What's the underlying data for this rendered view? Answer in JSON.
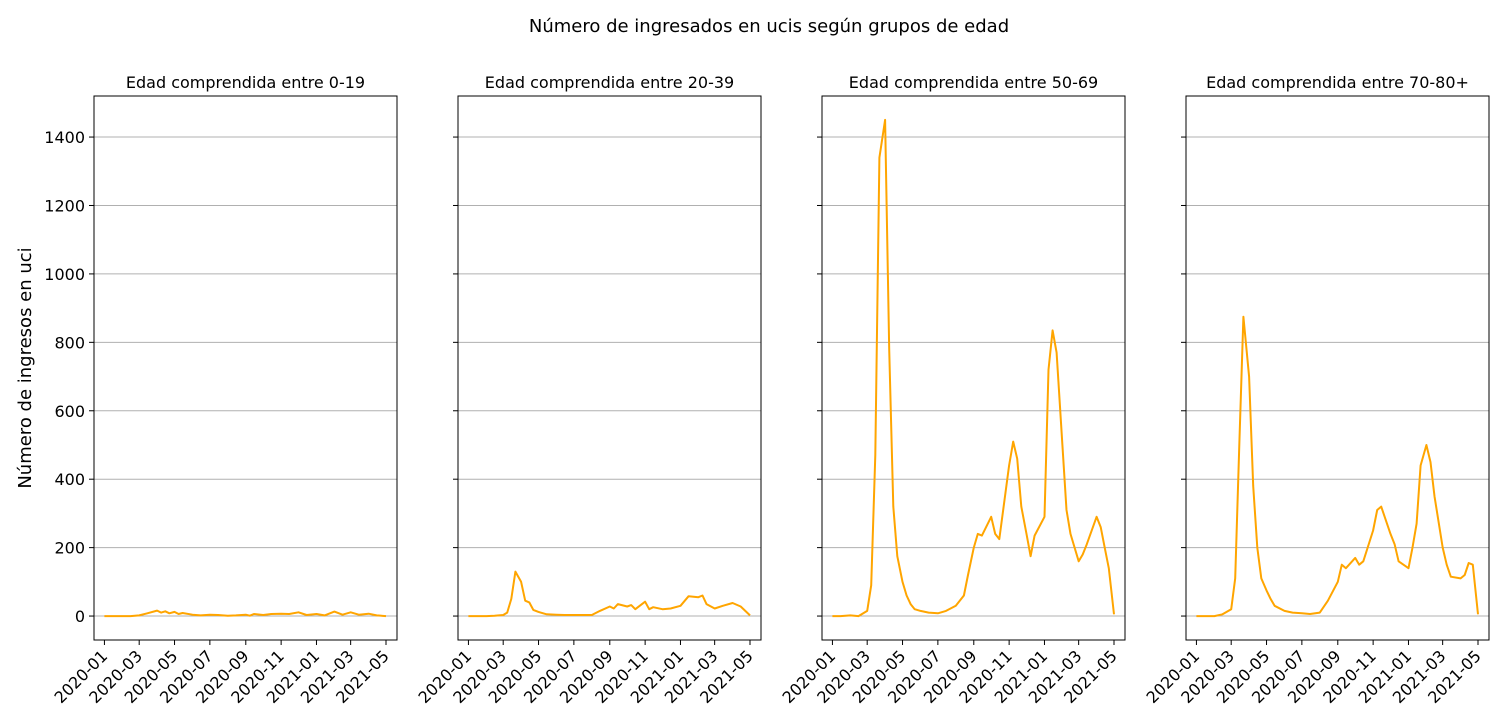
{
  "figure": {
    "suptitle": "Número de ingresados en ucis según grupos de edad",
    "ylabel": "Número de ingresos en uci",
    "line_color": "#ffa500",
    "grid_color": "#b0b0b0"
  },
  "chart_data": [
    {
      "type": "line",
      "title": "Edad comprendida entre 0-19",
      "xlabel": "",
      "ylabel": "Número de ingresos en uci",
      "ylim": [
        -70,
        1520
      ],
      "yticks": [
        0,
        200,
        400,
        600,
        800,
        1000,
        1200,
        1400
      ],
      "xticks": [
        "2020-01",
        "2020-03",
        "2020-05",
        "2020-07",
        "2020-09",
        "2020-11",
        "2021-01",
        "2021-03",
        "2021-05"
      ],
      "grid": "y",
      "series": [
        {
          "x": [
            "2020-01-01",
            "2020-01-15",
            "2020-02-01",
            "2020-02-15",
            "2020-03-01",
            "2020-03-15",
            "2020-04-01",
            "2020-04-08",
            "2020-04-15",
            "2020-04-22",
            "2020-05-01",
            "2020-05-08",
            "2020-05-15",
            "2020-06-01",
            "2020-06-15",
            "2020-07-01",
            "2020-07-15",
            "2020-08-01",
            "2020-08-15",
            "2020-09-01",
            "2020-09-08",
            "2020-09-15",
            "2020-10-01",
            "2020-10-15",
            "2020-11-01",
            "2020-11-15",
            "2020-12-01",
            "2020-12-15",
            "2021-01-01",
            "2021-01-15",
            "2021-02-01",
            "2021-02-15",
            "2021-03-01",
            "2021-03-15",
            "2021-04-01",
            "2021-04-15",
            "2021-05-01"
          ],
          "values": [
            0,
            0,
            0,
            0,
            2,
            8,
            16,
            10,
            14,
            8,
            12,
            6,
            9,
            4,
            2,
            4,
            3,
            1,
            2,
            4,
            1,
            6,
            3,
            6,
            7,
            6,
            11,
            3,
            6,
            2,
            13,
            4,
            11,
            4,
            7,
            2,
            0
          ]
        }
      ]
    },
    {
      "type": "line",
      "title": "Edad comprendida entre 20-39",
      "xlabel": "",
      "ylabel": "",
      "ylim": [
        -70,
        1520
      ],
      "yticks": [
        0,
        200,
        400,
        600,
        800,
        1000,
        1200,
        1400
      ],
      "xticks": [
        "2020-01",
        "2020-03",
        "2020-05",
        "2020-07",
        "2020-09",
        "2020-11",
        "2021-01",
        "2021-03",
        "2021-05"
      ],
      "grid": "y",
      "series": [
        {
          "x": [
            "2020-01-01",
            "2020-01-15",
            "2020-02-01",
            "2020-02-15",
            "2020-03-01",
            "2020-03-08",
            "2020-03-15",
            "2020-03-22",
            "2020-04-01",
            "2020-04-08",
            "2020-04-15",
            "2020-04-22",
            "2020-05-01",
            "2020-05-15",
            "2020-06-01",
            "2020-06-15",
            "2020-07-01",
            "2020-07-15",
            "2020-08-01",
            "2020-08-15",
            "2020-09-01",
            "2020-09-08",
            "2020-09-15",
            "2020-10-01",
            "2020-10-08",
            "2020-10-15",
            "2020-11-01",
            "2020-11-08",
            "2020-11-15",
            "2020-12-01",
            "2020-12-15",
            "2021-01-01",
            "2021-01-15",
            "2021-02-01",
            "2021-02-08",
            "2021-02-15",
            "2021-03-01",
            "2021-03-15",
            "2021-04-01",
            "2021-04-15",
            "2021-05-01"
          ],
          "values": [
            0,
            0,
            0,
            1,
            3,
            10,
            50,
            130,
            100,
            45,
            40,
            18,
            12,
            5,
            4,
            3,
            3,
            3,
            3,
            15,
            28,
            22,
            35,
            28,
            32,
            20,
            42,
            20,
            26,
            20,
            22,
            30,
            58,
            55,
            60,
            35,
            22,
            30,
            38,
            28,
            2
          ]
        }
      ]
    },
    {
      "type": "line",
      "title": "Edad comprendida entre 50-69",
      "xlabel": "",
      "ylabel": "",
      "ylim": [
        -70,
        1520
      ],
      "yticks": [
        0,
        200,
        400,
        600,
        800,
        1000,
        1200,
        1400
      ],
      "xticks": [
        "2020-01",
        "2020-03",
        "2020-05",
        "2020-07",
        "2020-09",
        "2020-11",
        "2021-01",
        "2021-03",
        "2021-05"
      ],
      "grid": "y",
      "series": [
        {
          "x": [
            "2020-01-01",
            "2020-01-15",
            "2020-02-01",
            "2020-02-15",
            "2020-03-01",
            "2020-03-08",
            "2020-03-15",
            "2020-03-22",
            "2020-04-01",
            "2020-04-08",
            "2020-04-15",
            "2020-04-22",
            "2020-05-01",
            "2020-05-08",
            "2020-05-15",
            "2020-05-22",
            "2020-06-01",
            "2020-06-15",
            "2020-07-01",
            "2020-07-15",
            "2020-08-01",
            "2020-08-15",
            "2020-08-22",
            "2020-09-01",
            "2020-09-08",
            "2020-09-15",
            "2020-10-01",
            "2020-10-08",
            "2020-10-15",
            "2020-11-01",
            "2020-11-08",
            "2020-11-15",
            "2020-11-22",
            "2020-12-01",
            "2020-12-08",
            "2020-12-15",
            "2021-01-01",
            "2021-01-08",
            "2021-01-15",
            "2021-01-22",
            "2021-02-01",
            "2021-02-08",
            "2021-02-15",
            "2021-03-01",
            "2021-03-08",
            "2021-03-15",
            "2021-04-01",
            "2021-04-08",
            "2021-04-15",
            "2021-04-22",
            "2021-05-01"
          ],
          "values": [
            0,
            0,
            2,
            0,
            15,
            90,
            470,
            1340,
            1450,
            780,
            320,
            175,
            100,
            60,
            35,
            20,
            15,
            10,
            8,
            15,
            30,
            60,
            120,
            200,
            240,
            235,
            290,
            240,
            225,
            440,
            510,
            460,
            320,
            240,
            175,
            235,
            290,
            720,
            835,
            770,
            500,
            310,
            240,
            160,
            180,
            210,
            290,
            260,
            200,
            140,
            5
          ]
        }
      ]
    },
    {
      "type": "line",
      "title": "Edad comprendida entre 70-80+",
      "xlabel": "",
      "ylabel": "",
      "ylim": [
        -70,
        1520
      ],
      "yticks": [
        0,
        200,
        400,
        600,
        800,
        1000,
        1200,
        1400
      ],
      "xticks": [
        "2020-01",
        "2020-03",
        "2020-05",
        "2020-07",
        "2020-09",
        "2020-11",
        "2021-01",
        "2021-03",
        "2021-05"
      ],
      "grid": "y",
      "series": [
        {
          "x": [
            "2020-01-01",
            "2020-01-15",
            "2020-02-01",
            "2020-02-15",
            "2020-03-01",
            "2020-03-08",
            "2020-03-15",
            "2020-03-22",
            "2020-04-01",
            "2020-04-08",
            "2020-04-15",
            "2020-04-22",
            "2020-05-01",
            "2020-05-08",
            "2020-05-15",
            "2020-06-01",
            "2020-06-15",
            "2020-07-01",
            "2020-07-15",
            "2020-08-01",
            "2020-08-15",
            "2020-09-01",
            "2020-09-08",
            "2020-09-15",
            "2020-10-01",
            "2020-10-08",
            "2020-10-15",
            "2020-11-01",
            "2020-11-08",
            "2020-11-15",
            "2020-12-01",
            "2020-12-08",
            "2020-12-15",
            "2021-01-01",
            "2021-01-08",
            "2021-01-15",
            "2021-01-22",
            "2021-02-01",
            "2021-02-08",
            "2021-02-15",
            "2021-03-01",
            "2021-03-08",
            "2021-03-15",
            "2021-04-01",
            "2021-04-08",
            "2021-04-15",
            "2021-04-22",
            "2021-05-01"
          ],
          "values": [
            0,
            0,
            0,
            5,
            20,
            110,
            500,
            875,
            700,
            380,
            200,
            110,
            75,
            50,
            30,
            15,
            10,
            8,
            6,
            10,
            45,
            100,
            150,
            140,
            170,
            150,
            160,
            250,
            310,
            320,
            240,
            210,
            160,
            140,
            200,
            270,
            440,
            500,
            450,
            350,
            200,
            150,
            115,
            110,
            120,
            155,
            150,
            5
          ]
        }
      ]
    }
  ]
}
